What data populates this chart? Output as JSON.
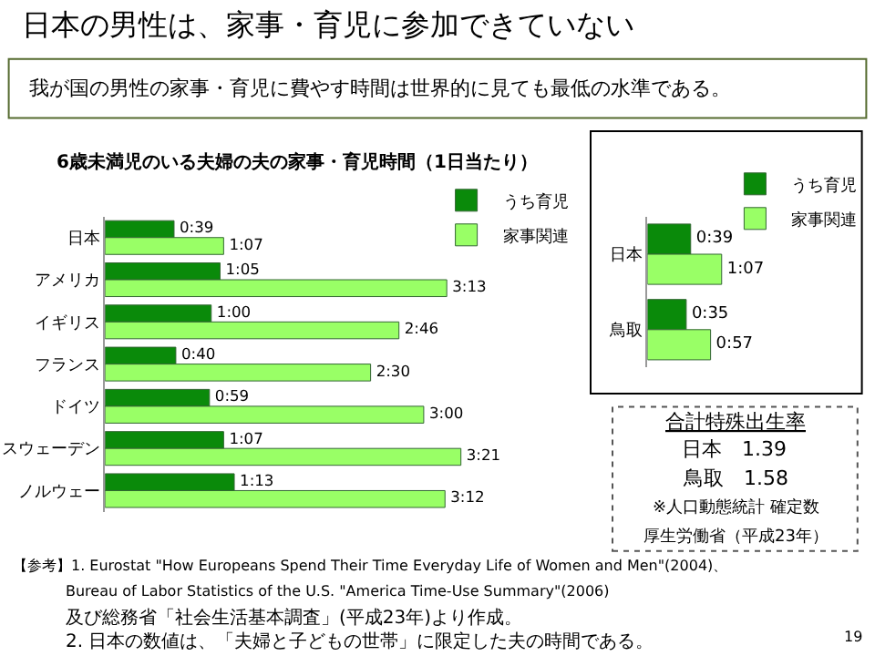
{
  "chart_data": [
    {
      "type": "bar",
      "orientation": "horizontal",
      "title": "6歳未満児のいる夫婦の夫の家事・育児時間（1日当たり）",
      "categories": [
        "日本",
        "アメリカ",
        "イギリス",
        "フランス",
        "ドイツ",
        "スウェーデン",
        "ノルウェー"
      ],
      "series": [
        {
          "name": "うち育児",
          "color": "#0a8a0a",
          "values": [
            39,
            65,
            60,
            40,
            59,
            67,
            73
          ],
          "value_labels": [
            "0:39",
            "1:05",
            "1:00",
            "0:40",
            "0:59",
            "1:07",
            "1:13"
          ]
        },
        {
          "name": "家事関連",
          "color": "#99ff66",
          "values": [
            67,
            193,
            166,
            150,
            180,
            201,
            192
          ],
          "value_labels": [
            "1:07",
            "3:13",
            "2:46",
            "2:30",
            "3:00",
            "3:21",
            "3:12"
          ]
        }
      ],
      "legend": "top right",
      "tick_labels": "y",
      "annotations": [
        "日本の男性は、家事・育児に参加できていない",
        "我が国の男性の家事・育児に費やす時間は世界的に見ても最低の水準である。",
        "【参考】1. Eurostat \"How Europeans Spend Their Time Everyday Life of Women and Men\"(2004)、",
        "Bureau of Labor Statistics of the U.S. \"America Time-Use Summary\"(2006)",
        "及び総務省「社会生活基本調査」(平成23年)より作成。",
        "2. 日本の数値は、「夫婦と子どもの世帯」に限定した夫の時間である。",
        "19"
      ]
    },
    {
      "type": "bar",
      "orientation": "horizontal",
      "categories": [
        "日本",
        "鳥取"
      ],
      "series": [
        {
          "name": "うち育児",
          "color": "#0a8a0a",
          "values": [
            39,
            35
          ],
          "value_labels": [
            "0:39",
            "0:35"
          ]
        },
        {
          "name": "家事関連",
          "color": "#99ff66",
          "values": [
            67,
            57
          ],
          "value_labels": [
            "1:07",
            "0:57"
          ]
        }
      ],
      "legend": "top right",
      "tick_labels": "y"
    },
    {
      "type": "other",
      "title": "合計特殊出生率",
      "annotations": [
        "日本　1.39",
        "鳥取　1.58",
        "※人口動態統計 確定数",
        "厚生労働省（平成23年）"
      ]
    }
  ]
}
